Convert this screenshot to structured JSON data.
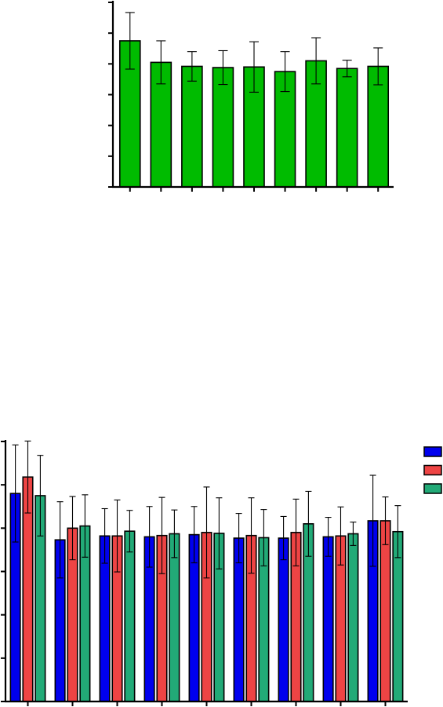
{
  "chart_data": [
    {
      "type": "bar",
      "title": "",
      "xlabel": "",
      "ylabel": "",
      "ylim": [
        0,
        6
      ],
      "grid": false,
      "categories": [
        "",
        "",
        "",
        "",
        "",
        "",
        "",
        "",
        ""
      ],
      "series": [
        {
          "color": "#00bb00",
          "values": [
            4.75,
            4.05,
            3.92,
            3.88,
            3.9,
            3.75,
            4.1,
            3.85,
            3.92
          ],
          "errors": [
            0.92,
            0.7,
            0.48,
            0.55,
            0.82,
            0.65,
            0.75,
            0.27,
            0.6
          ]
        }
      ]
    },
    {
      "type": "bar",
      "title": "",
      "xlabel": "",
      "ylabel": "",
      "ylim": [
        0,
        6
      ],
      "grid": false,
      "legend": "right",
      "categories": [
        "",
        "",
        "",
        "",
        "",
        "",
        "",
        "",
        ""
      ],
      "series": [
        {
          "color": "#0000ee",
          "values": [
            4.8,
            3.73,
            3.82,
            3.8,
            3.85,
            3.77,
            3.77,
            3.8,
            4.17
          ],
          "errors": [
            1.12,
            0.88,
            0.63,
            0.7,
            0.65,
            0.57,
            0.5,
            0.45,
            1.05
          ]
        },
        {
          "color": "#ee4444",
          "values": [
            5.18,
            4.0,
            3.82,
            3.83,
            3.9,
            3.83,
            3.9,
            3.82,
            4.17
          ],
          "errors": [
            0.83,
            0.73,
            0.83,
            0.88,
            1.05,
            0.87,
            0.77,
            0.67,
            0.55
          ]
        },
        {
          "color": "#22aa77",
          "values": [
            4.75,
            4.05,
            3.93,
            3.87,
            3.88,
            3.78,
            4.1,
            3.87,
            3.92
          ],
          "errors": [
            0.93,
            0.72,
            0.48,
            0.55,
            0.82,
            0.65,
            0.75,
            0.27,
            0.6
          ]
        }
      ]
    }
  ]
}
